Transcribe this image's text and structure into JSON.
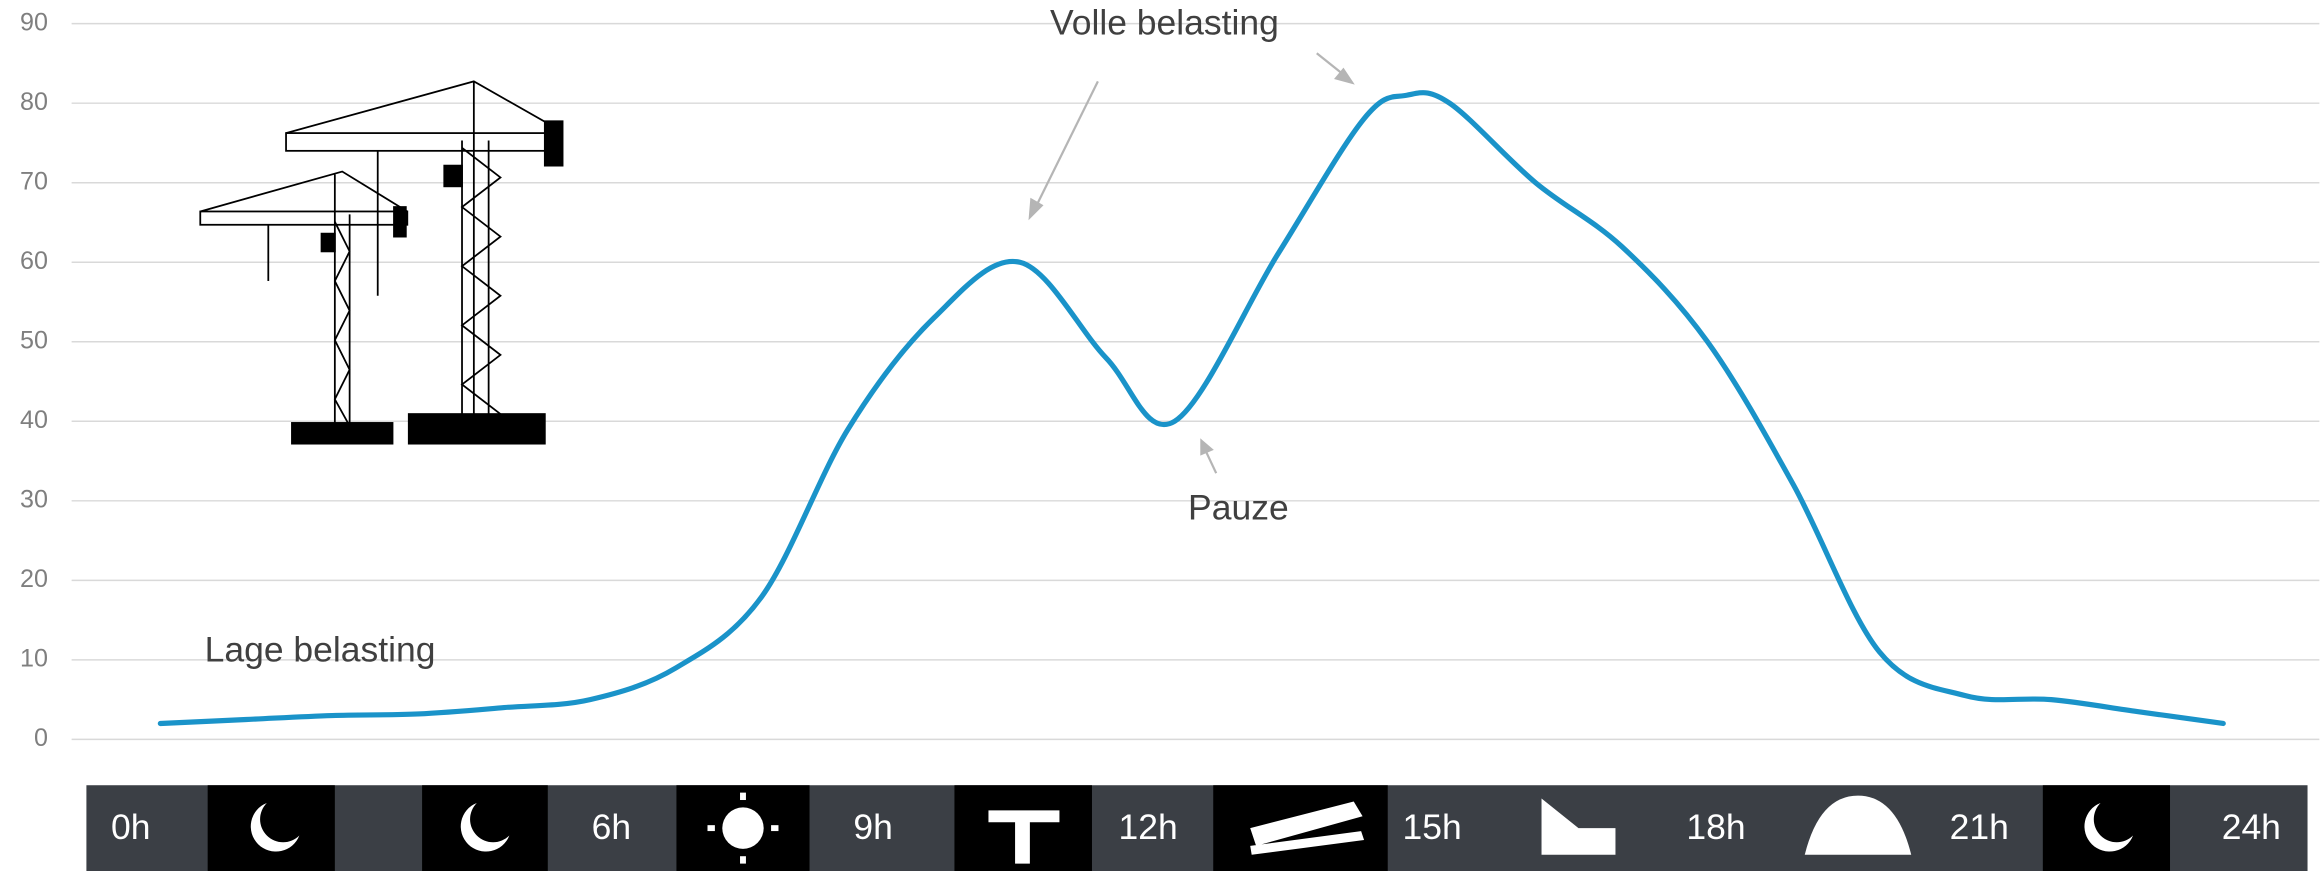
{
  "chart_data": {
    "type": "line",
    "x": [
      0,
      1,
      2,
      3,
      4,
      5,
      6,
      7,
      8,
      9,
      10,
      11,
      11.8,
      13,
      14,
      14.5,
      15,
      16,
      17,
      18,
      19,
      20,
      21,
      22,
      23,
      24
    ],
    "series": [
      {
        "color": "#1a93c9",
        "values": [
          2,
          2.5,
          3,
          3.2,
          4,
          5,
          9,
          18,
          39,
          53,
          60,
          48,
          40,
          61,
          78,
          81,
          80,
          70,
          62,
          50,
          32,
          11,
          5.5,
          5,
          3.5,
          2
        ]
      }
    ],
    "xlim": [
      0,
      24
    ],
    "ylim": [
      0,
      90
    ],
    "yticks": [
      0,
      10,
      20,
      30,
      40,
      50,
      60,
      70,
      80,
      90
    ],
    "grid": true,
    "annotations": [
      "Volle belasting",
      "Pauze",
      "Lage belasting"
    ],
    "time_labels": [
      "0h",
      "6h",
      "9h",
      "12h",
      "15h",
      "18h",
      "21h",
      "24h"
    ]
  }
}
